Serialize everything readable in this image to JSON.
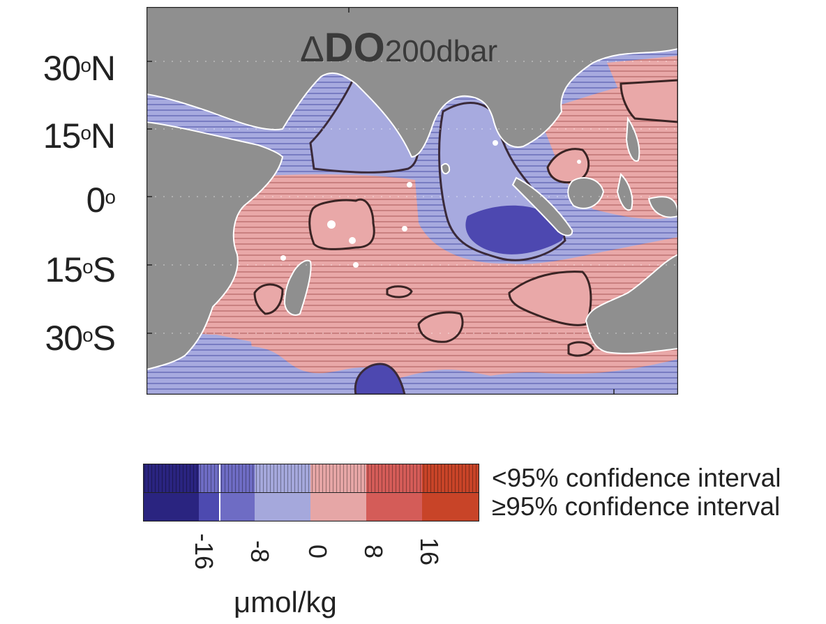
{
  "title": {
    "symbol": "Δ",
    "main": "DO",
    "sub": "200dbar"
  },
  "latitudes": [
    {
      "num": "30",
      "deg": "o",
      "hem": "N"
    },
    {
      "num": "15",
      "deg": "o",
      "hem": "N"
    },
    {
      "num": "0",
      "deg": "o",
      "hem": ""
    },
    {
      "num": "15",
      "deg": "o",
      "hem": "S"
    },
    {
      "num": "30",
      "deg": "o",
      "hem": "S"
    }
  ],
  "colorbar": {
    "ticks": [
      "-16",
      "-8",
      "0",
      "8",
      "16"
    ],
    "units": "μmol/kg",
    "legend_top": "<95% confidence interval",
    "legend_bottom": "≥95% confidence interval",
    "colors": [
      "#2a2480",
      "#4d4ab0",
      "#6e6cc4",
      "#a5a8dc",
      "#e6a6a6",
      "#d45c58",
      "#c84428"
    ]
  },
  "colors": {
    "land": "#8f8f8f",
    "positive": "#e9a8a8",
    "negative": "#a7aadf",
    "strong_negative": "#4d48b0",
    "contour": "#3a2424"
  }
}
